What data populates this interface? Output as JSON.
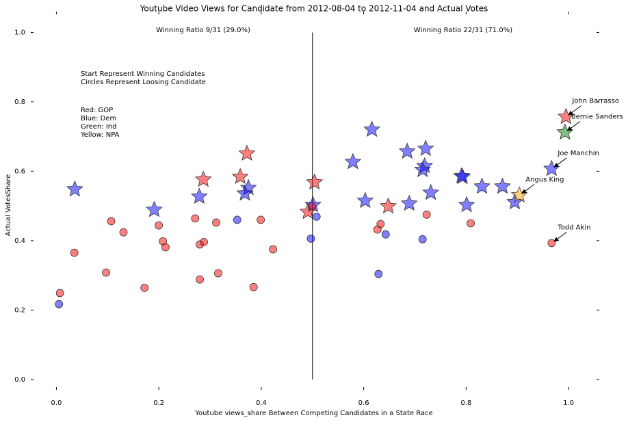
{
  "chart_data": {
    "type": "scatter",
    "title": "Youtube Video Views for Candidate from 2012-08-04 to 2012-11-04 and Actual Votes",
    "x_label": "Youtube views_share Between Competing Candidates in a State Race",
    "y_label": "Actual VotesShare",
    "xlim": [
      -0.05,
      1.06
    ],
    "ylim": [
      -0.03,
      1.06
    ],
    "xticks": [
      {
        "value": 0,
        "label": "0.0"
      },
      0.2,
      0.4,
      0.6,
      0.8,
      {
        "value": 1,
        "label": "1.0"
      }
    ],
    "yticks": [
      {
        "value": 0,
        "label": "0.0"
      },
      0.2,
      0.4,
      0.6,
      0.8,
      {
        "value": 1,
        "label": "1.0"
      }
    ],
    "vline": 0.5,
    "ratio_labels": [
      "Winning Ratio 9/31 (29.0%)",
      "Winning Ratio 22/31 (71.0%)"
    ],
    "notes": [
      [
        "Start Represent Winning Candidates",
        "Circles Represent Loosing Candidate"
      ],
      [
        "Red: GOP",
        "Blue: Dem",
        "Green: Ind",
        "Yellow: NPA"
      ]
    ],
    "series": [
      {
        "marker": "star",
        "color": "#ff0000",
        "x": [
          0.372,
          0.287,
          0.359,
          0.504,
          0.491,
          0.648,
          0.995
        ],
        "y": [
          0.651,
          0.576,
          0.584,
          0.568,
          0.483,
          0.499,
          0.757
        ]
      },
      {
        "marker": "star",
        "color": "#0000ff",
        "x": [
          0.036,
          0.191,
          0.279,
          0.375,
          0.368,
          0.501,
          0.616,
          0.579,
          0.603,
          0.689,
          0.685,
          0.721,
          0.719,
          0.715,
          0.731,
          0.791,
          0.793,
          0.801,
          0.831,
          0.871,
          0.895,
          0.967
        ],
        "y": [
          0.548,
          0.489,
          0.527,
          0.552,
          0.536,
          0.503,
          0.72,
          0.627,
          0.515,
          0.507,
          0.657,
          0.665,
          0.615,
          0.604,
          0.538,
          0.586,
          0.584,
          0.503,
          0.556,
          0.556,
          0.511,
          0.607
        ]
      },
      {
        "marker": "star",
        "color": "#008000",
        "x": [
          0.993
        ],
        "y": [
          0.712
        ]
      },
      {
        "marker": "star",
        "color": "#ffa500",
        "x": [
          0.904
        ],
        "y": [
          0.531
        ]
      },
      {
        "marker": "circle",
        "color": "#ff0000",
        "x": [
          0.007,
          0.035,
          0.097,
          0.107,
          0.131,
          0.172,
          0.2,
          0.208,
          0.213,
          0.271,
          0.28,
          0.28,
          0.288,
          0.312,
          0.316,
          0.399,
          0.385,
          0.423,
          0.499,
          0.627,
          0.633,
          0.723,
          0.809,
          0.967
        ],
        "y": [
          0.249,
          0.365,
          0.308,
          0.456,
          0.424,
          0.264,
          0.444,
          0.398,
          0.381,
          0.464,
          0.389,
          0.288,
          0.396,
          0.452,
          0.306,
          0.46,
          0.266,
          0.375,
          0.499,
          0.432,
          0.448,
          0.475,
          0.45,
          0.393
        ]
      },
      {
        "marker": "circle",
        "color": "#0000ff",
        "x": [
          0.005,
          0.353,
          0.497,
          0.508,
          0.629,
          0.643,
          0.715
        ],
        "y": [
          0.217,
          0.46,
          0.406,
          0.469,
          0.304,
          0.418,
          0.404
        ]
      }
    ],
    "annotations": [
      {
        "text": "John Barrasso",
        "x": 0.995,
        "y": 0.757
      },
      {
        "text": "Bernie Sanders",
        "x": 0.993,
        "y": 0.712
      },
      {
        "text": "Joe Manchin",
        "x": 0.967,
        "y": 0.607
      },
      {
        "text": "Angus King",
        "x": 0.904,
        "y": 0.531
      },
      {
        "text": "Todd Akin",
        "x": 0.967,
        "y": 0.393
      }
    ]
  }
}
